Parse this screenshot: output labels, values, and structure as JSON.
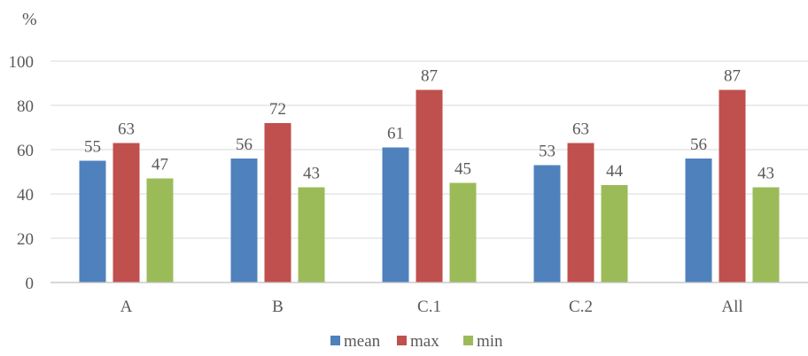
{
  "chart_data": {
    "type": "bar",
    "title": "",
    "xlabel": "",
    "ylabel": "%",
    "ylim": [
      0,
      100
    ],
    "yticks": [
      0,
      20,
      40,
      60,
      80,
      100
    ],
    "grid": true,
    "legend_position": "bottom",
    "categories": [
      "A",
      "B",
      "C.1",
      "C.2",
      "All"
    ],
    "series": [
      {
        "name": "mean",
        "color": "#4f81bd",
        "values": [
          55,
          56,
          61,
          53,
          56
        ]
      },
      {
        "name": "max",
        "color": "#c0504d",
        "values": [
          63,
          72,
          87,
          63,
          87
        ]
      },
      {
        "name": "min",
        "color": "#9bbb59",
        "values": [
          47,
          43,
          45,
          44,
          43
        ]
      }
    ]
  }
}
